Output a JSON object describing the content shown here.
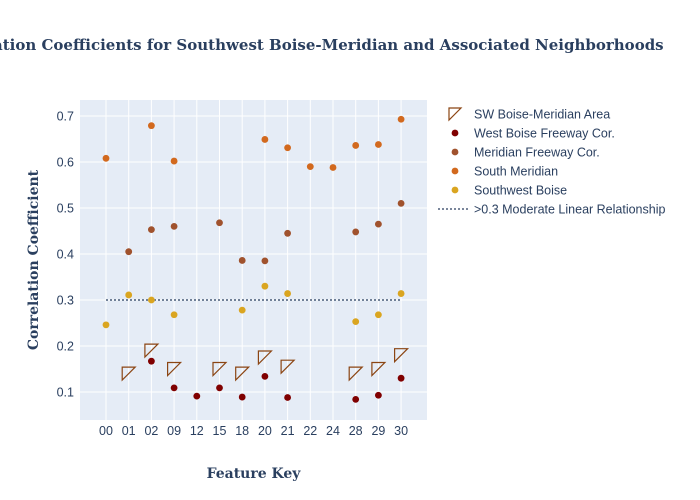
{
  "chart_data": {
    "type": "scatter",
    "title": "Correlation Coefficients for Southwest Boise-Meridian and Associated Neighborhoods",
    "xlabel": "Feature Key",
    "ylabel": "Correlation Coefficient",
    "categories": [
      "00",
      "01",
      "02",
      "09",
      "12",
      "15",
      "18",
      "20",
      "21",
      "22",
      "24",
      "28",
      "29",
      "30"
    ],
    "yticks": [
      "0.1",
      "0.2",
      "0.3",
      "0.4",
      "0.5",
      "0.6",
      "0.7"
    ],
    "ylim": [
      0.04,
      0.74
    ],
    "grid": true,
    "legend_position": "right",
    "series": [
      {
        "name": "SW Boise-Meridian Area",
        "marker": "triangle",
        "color": "#8B4513",
        "points": [
          {
            "x": "01",
            "y": 0.14
          },
          {
            "x": "02",
            "y": 0.19
          },
          {
            "x": "09",
            "y": 0.15
          },
          {
            "x": "15",
            "y": 0.15
          },
          {
            "x": "18",
            "y": 0.14
          },
          {
            "x": "20",
            "y": 0.175
          },
          {
            "x": "21",
            "y": 0.155
          },
          {
            "x": "28",
            "y": 0.14
          },
          {
            "x": "29",
            "y": 0.15
          },
          {
            "x": "30",
            "y": 0.18
          }
        ]
      },
      {
        "name": "West Boise Freeway Cor.",
        "marker": "circle",
        "color": "#800000",
        "points": [
          {
            "x": "02",
            "y": 0.167
          },
          {
            "x": "09",
            "y": 0.109
          },
          {
            "x": "12",
            "y": 0.091
          },
          {
            "x": "15",
            "y": 0.109
          },
          {
            "x": "18",
            "y": 0.089
          },
          {
            "x": "20",
            "y": 0.134
          },
          {
            "x": "21",
            "y": 0.088
          },
          {
            "x": "28",
            "y": 0.084
          },
          {
            "x": "29",
            "y": 0.093
          },
          {
            "x": "30",
            "y": 0.13
          }
        ]
      },
      {
        "name": "Meridian Freeway Cor.",
        "marker": "circle",
        "color": "#A0522D",
        "points": [
          {
            "x": "01",
            "y": 0.405
          },
          {
            "x": "02",
            "y": 0.453
          },
          {
            "x": "09",
            "y": 0.46
          },
          {
            "x": "15",
            "y": 0.468
          },
          {
            "x": "18",
            "y": 0.386
          },
          {
            "x": "20",
            "y": 0.385
          },
          {
            "x": "21",
            "y": 0.445
          },
          {
            "x": "28",
            "y": 0.448
          },
          {
            "x": "29",
            "y": 0.465
          },
          {
            "x": "30",
            "y": 0.51
          }
        ]
      },
      {
        "name": "South Meridian",
        "marker": "circle",
        "color": "#D2691E",
        "points": [
          {
            "x": "00",
            "y": 0.608
          },
          {
            "x": "02",
            "y": 0.679
          },
          {
            "x": "09",
            "y": 0.602
          },
          {
            "x": "20",
            "y": 0.649
          },
          {
            "x": "21",
            "y": 0.631
          },
          {
            "x": "22",
            "y": 0.59
          },
          {
            "x": "24",
            "y": 0.588
          },
          {
            "x": "28",
            "y": 0.636
          },
          {
            "x": "29",
            "y": 0.638
          },
          {
            "x": "30",
            "y": 0.693
          }
        ]
      },
      {
        "name": "Southwest Boise",
        "marker": "circle",
        "color": "#DAA520",
        "points": [
          {
            "x": "00",
            "y": 0.246
          },
          {
            "x": "01",
            "y": 0.311
          },
          {
            "x": "02",
            "y": 0.3
          },
          {
            "x": "09",
            "y": 0.268
          },
          {
            "x": "18",
            "y": 0.278
          },
          {
            "x": "20",
            "y": 0.33
          },
          {
            "x": "21",
            "y": 0.314
          },
          {
            "x": "28",
            "y": 0.253
          },
          {
            "x": "29",
            "y": 0.268
          },
          {
            "x": "30",
            "y": 0.314
          }
        ]
      }
    ],
    "reference_line": {
      "name": ">0.3 Moderate Linear Relationship",
      "y": 0.3,
      "x_from": "00",
      "x_to": "30",
      "style": "dotted",
      "color": "#2a3f5f"
    }
  },
  "colors": {
    "plot_background": "#e5ecf6",
    "grid": "#ffffff",
    "text": "#2a3f5f"
  }
}
